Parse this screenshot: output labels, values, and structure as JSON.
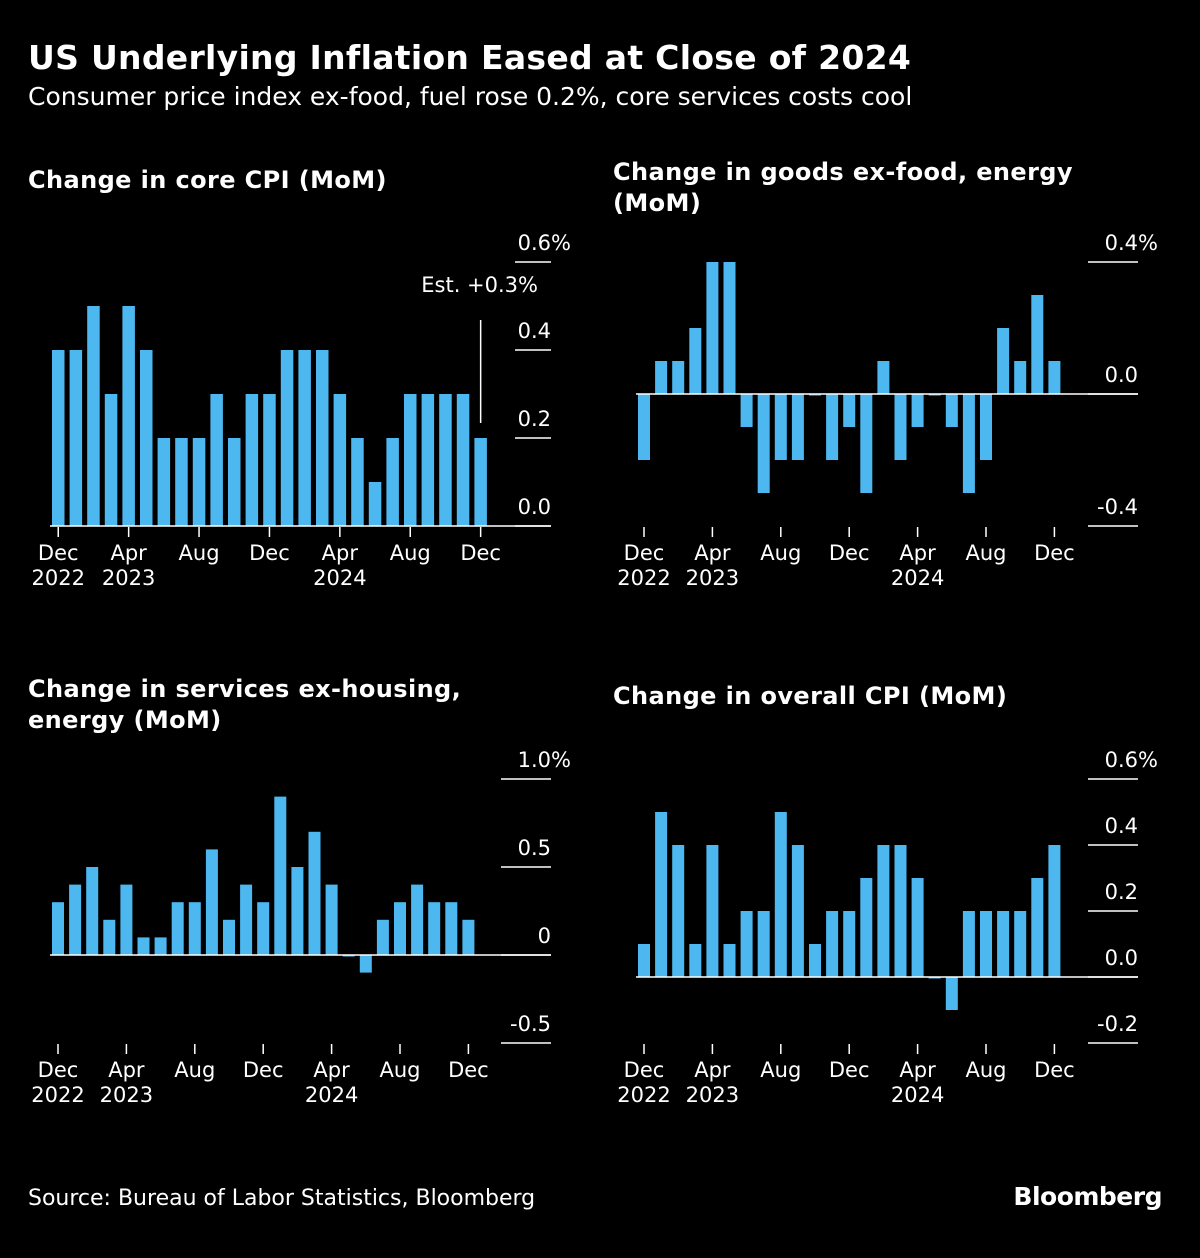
{
  "header": {
    "title": "US Underlying Inflation Eased at Close of 2024",
    "subtitle": "Consumer price index ex-food, fuel rose 0.2%, core services costs cool"
  },
  "footer": {
    "source": "Source: Bureau of Labor Statistics, Bloomberg",
    "logo": "Bloomberg"
  },
  "colors": {
    "bar": "#4db8f0",
    "background": "#000000",
    "text": "#ffffff"
  },
  "chart_data": [
    {
      "type": "bar",
      "title": "Change in core CPI (MoM)",
      "ylim": [
        0,
        0.6
      ],
      "yticks": [
        {
          "v": 0.6,
          "label": "0.6%"
        },
        {
          "v": 0.4,
          "label": "0.4"
        },
        {
          "v": 0.2,
          "label": "0.2"
        },
        {
          "v": 0.0,
          "label": "0.0"
        }
      ],
      "xticks": [
        {
          "i": 0,
          "l1": "Dec",
          "l2": "2022"
        },
        {
          "i": 4,
          "l1": "Apr",
          "l2": "2023"
        },
        {
          "i": 8,
          "l1": "Aug",
          "l2": ""
        },
        {
          "i": 12,
          "l1": "Dec",
          "l2": ""
        },
        {
          "i": 16,
          "l1": "Apr",
          "l2": "2024"
        },
        {
          "i": 20,
          "l1": "Aug",
          "l2": ""
        },
        {
          "i": 24,
          "l1": "Dec",
          "l2": ""
        }
      ],
      "values": [
        0.4,
        0.4,
        0.5,
        0.3,
        0.5,
        0.4,
        0.2,
        0.2,
        0.2,
        0.3,
        0.2,
        0.3,
        0.3,
        0.4,
        0.4,
        0.4,
        0.3,
        0.2,
        0.1,
        0.2,
        0.3,
        0.3,
        0.3,
        0.3,
        0.2
      ],
      "annotation": "Est. +0.3%",
      "grid": false
    },
    {
      "type": "bar",
      "title": "Change in goods ex-food, energy (MoM)",
      "ylim": [
        -0.4,
        0.4
      ],
      "yticks": [
        {
          "v": 0.4,
          "label": "0.4%"
        },
        {
          "v": 0.0,
          "label": "0.0"
        },
        {
          "v": -0.4,
          "label": "-0.4"
        }
      ],
      "xticks": [
        {
          "i": 0,
          "l1": "Dec",
          "l2": "2022"
        },
        {
          "i": 4,
          "l1": "Apr",
          "l2": "2023"
        },
        {
          "i": 8,
          "l1": "Aug",
          "l2": ""
        },
        {
          "i": 12,
          "l1": "Dec",
          "l2": ""
        },
        {
          "i": 16,
          "l1": "Apr",
          "l2": "2024"
        },
        {
          "i": 20,
          "l1": "Aug",
          "l2": ""
        },
        {
          "i": 24,
          "l1": "Dec",
          "l2": ""
        }
      ],
      "values": [
        -0.2,
        0.1,
        0.1,
        0.2,
        0.4,
        0.4,
        -0.1,
        -0.3,
        -0.2,
        -0.2,
        0.0,
        -0.2,
        -0.1,
        -0.3,
        0.1,
        -0.2,
        -0.1,
        0.0,
        -0.1,
        -0.3,
        -0.2,
        0.2,
        0.1,
        0.3,
        0.1
      ],
      "grid": false
    },
    {
      "type": "bar",
      "title": "Change in services ex-housing, energy (MoM)",
      "ylim": [
        -0.5,
        1.0
      ],
      "yticks": [
        {
          "v": 1.0,
          "label": "1.0%"
        },
        {
          "v": 0.5,
          "label": "0.5"
        },
        {
          "v": 0,
          "label": "0"
        },
        {
          "v": -0.5,
          "label": "-0.5"
        }
      ],
      "xticks": [
        {
          "i": 0,
          "l1": "Dec",
          "l2": "2022"
        },
        {
          "i": 4,
          "l1": "Apr",
          "l2": "2023"
        },
        {
          "i": 8,
          "l1": "Aug",
          "l2": ""
        },
        {
          "i": 12,
          "l1": "Dec",
          "l2": ""
        },
        {
          "i": 16,
          "l1": "Apr",
          "l2": "2024"
        },
        {
          "i": 20,
          "l1": "Aug",
          "l2": ""
        },
        {
          "i": 24,
          "l1": "Dec",
          "l2": ""
        }
      ],
      "values": [
        0.3,
        0.4,
        0.5,
        0.2,
        0.4,
        0.1,
        0.1,
        0.3,
        0.3,
        0.6,
        0.2,
        0.4,
        0.3,
        0.9,
        0.5,
        0.7,
        0.4,
        0.0,
        -0.1,
        0.2,
        0.3,
        0.4,
        0.3,
        0.3,
        0.2
      ],
      "grid": false
    },
    {
      "type": "bar",
      "title": "Change in overall CPI (MoM)",
      "ylim": [
        -0.2,
        0.6
      ],
      "yticks": [
        {
          "v": 0.6,
          "label": "0.6%"
        },
        {
          "v": 0.4,
          "label": "0.4"
        },
        {
          "v": 0.2,
          "label": "0.2"
        },
        {
          "v": 0.0,
          "label": "0.0"
        },
        {
          "v": -0.2,
          "label": "-0.2"
        }
      ],
      "xticks": [
        {
          "i": 0,
          "l1": "Dec",
          "l2": "2022"
        },
        {
          "i": 4,
          "l1": "Apr",
          "l2": "2023"
        },
        {
          "i": 8,
          "l1": "Aug",
          "l2": ""
        },
        {
          "i": 12,
          "l1": "Dec",
          "l2": ""
        },
        {
          "i": 16,
          "l1": "Apr",
          "l2": "2024"
        },
        {
          "i": 20,
          "l1": "Aug",
          "l2": ""
        },
        {
          "i": 24,
          "l1": "Dec",
          "l2": ""
        }
      ],
      "values": [
        0.1,
        0.5,
        0.4,
        0.1,
        0.4,
        0.1,
        0.2,
        0.2,
        0.5,
        0.4,
        0.1,
        0.2,
        0.2,
        0.3,
        0.4,
        0.4,
        0.3,
        0.0,
        -0.1,
        0.2,
        0.2,
        0.2,
        0.2,
        0.3,
        0.4
      ],
      "grid": false
    }
  ]
}
